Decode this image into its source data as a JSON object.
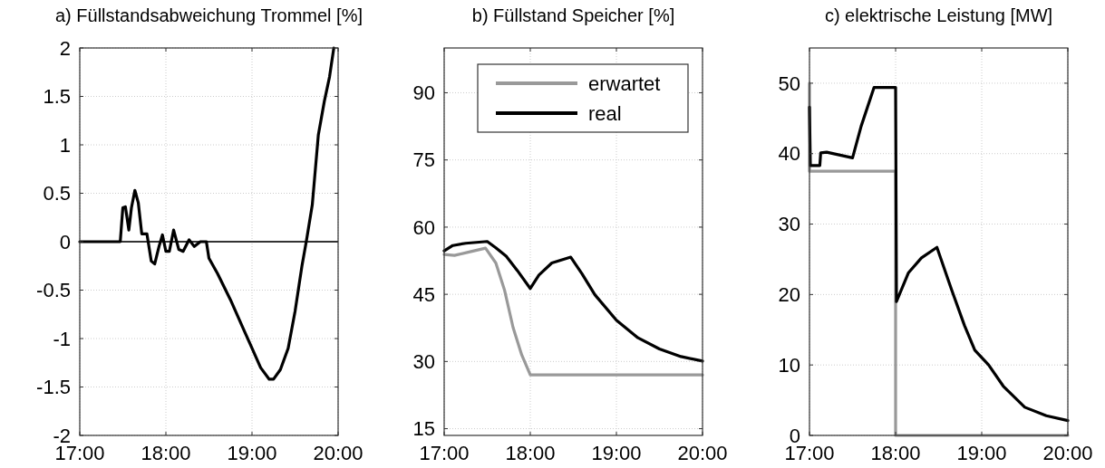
{
  "chart_data": [
    {
      "type": "line",
      "title": "a) Füllstandsabweichung Trommel [%]",
      "xlim": [
        17,
        20
      ],
      "xticks": [
        {
          "value": 17,
          "label": "17:00"
        },
        {
          "value": 18,
          "label": "18:00"
        },
        {
          "value": 19,
          "label": "19:00"
        },
        {
          "value": 20,
          "label": "20:00"
        }
      ],
      "ylim": [
        -2,
        2
      ],
      "yticks": [
        -2,
        -1.5,
        -1,
        -0.5,
        0,
        0.5,
        1,
        1.5,
        2
      ],
      "grid": true,
      "legend": false,
      "ref_lines": [
        {
          "axis": "y",
          "value": 0,
          "color": "#333333"
        }
      ],
      "series": [
        {
          "color": "#000000",
          "x": [
            17.0,
            17.45,
            17.47,
            17.5,
            17.53,
            17.57,
            17.6,
            17.64,
            17.68,
            17.72,
            17.78,
            17.83,
            17.87,
            17.92,
            17.96,
            18.0,
            18.04,
            18.09,
            18.15,
            18.2,
            18.27,
            18.33,
            18.4,
            18.47,
            18.5,
            18.6,
            18.75,
            18.9,
            19.0,
            19.1,
            19.2,
            19.25,
            19.33,
            19.42,
            19.5,
            19.58,
            19.63,
            19.7,
            19.77,
            19.84,
            19.9,
            19.95
          ],
          "values": [
            0,
            0,
            0,
            0.35,
            0.36,
            0.12,
            0.35,
            0.53,
            0.4,
            0.08,
            0.08,
            -0.2,
            -0.23,
            -0.05,
            0.07,
            -0.1,
            -0.1,
            0.12,
            -0.08,
            -0.1,
            0.02,
            -0.05,
            0,
            0,
            -0.17,
            -0.33,
            -0.6,
            -0.9,
            -1.1,
            -1.3,
            -1.42,
            -1.42,
            -1.32,
            -1.1,
            -0.72,
            -0.25,
            0,
            0.38,
            1.1,
            1.45,
            1.7,
            2.0
          ]
        }
      ]
    },
    {
      "type": "line",
      "title": "b) Füllstand Speicher [%]",
      "xlim": [
        17,
        20
      ],
      "xticks": [
        {
          "value": 17,
          "label": "17:00"
        },
        {
          "value": 18,
          "label": "18:00"
        },
        {
          "value": 19,
          "label": "19:00"
        },
        {
          "value": 20,
          "label": "20:00"
        }
      ],
      "ylim": [
        13.5,
        100
      ],
      "yticks": [
        15,
        30,
        45,
        60,
        75,
        90
      ],
      "grid": true,
      "legend": "top right",
      "series": [
        {
          "name": "erwartet",
          "color": "#999999",
          "x": [
            17.0,
            17.12,
            17.3,
            17.48,
            17.6,
            17.7,
            17.8,
            17.9,
            18.0,
            20.0
          ],
          "values": [
            53.9,
            53.7,
            54.5,
            55.3,
            52,
            46,
            37.6,
            31.5,
            27,
            27
          ]
        },
        {
          "name": "real",
          "color": "#000000",
          "x": [
            17.0,
            17.1,
            17.25,
            17.5,
            17.6,
            17.72,
            17.85,
            18.0,
            18.1,
            18.25,
            18.47,
            18.6,
            18.75,
            19.0,
            19.25,
            19.5,
            19.75,
            20.0
          ],
          "values": [
            54.7,
            55.9,
            56.4,
            56.8,
            55.4,
            53.5,
            50.3,
            46.3,
            49.3,
            52,
            53.3,
            49.6,
            44.9,
            39.2,
            35.3,
            32.8,
            31.1,
            30.1
          ]
        }
      ]
    },
    {
      "type": "line",
      "title": "c) elektrische Leistung [MW]",
      "xlim": [
        17,
        20
      ],
      "xticks": [
        {
          "value": 17,
          "label": "17:00"
        },
        {
          "value": 18,
          "label": "18:00"
        },
        {
          "value": 19,
          "label": "19:00"
        },
        {
          "value": 20,
          "label": "20:00"
        }
      ],
      "ylim": [
        0,
        55
      ],
      "yticks": [
        0,
        10,
        20,
        30,
        40,
        50
      ],
      "grid": true,
      "legend": false,
      "series": [
        {
          "color": "#999999",
          "x": [
            17.0,
            17.0,
            18.0,
            18.0,
            20.0
          ],
          "values": [
            50,
            37.5,
            37.5,
            0,
            0
          ]
        },
        {
          "color": "#000000",
          "x": [
            17.0,
            17.01,
            17.12,
            17.13,
            17.2,
            17.5,
            17.6,
            17.75,
            18.0,
            18.01,
            18.15,
            18.3,
            18.48,
            18.65,
            18.8,
            18.92,
            19.08,
            19.25,
            19.5,
            19.75,
            20.0
          ],
          "values": [
            46.6,
            38.3,
            38.3,
            40.1,
            40.2,
            39.4,
            43.9,
            49.4,
            49.4,
            19.0,
            23.1,
            25.2,
            26.7,
            20.7,
            15.6,
            12.1,
            10.0,
            7.0,
            4.0,
            2.8,
            2.1
          ]
        }
      ]
    }
  ]
}
